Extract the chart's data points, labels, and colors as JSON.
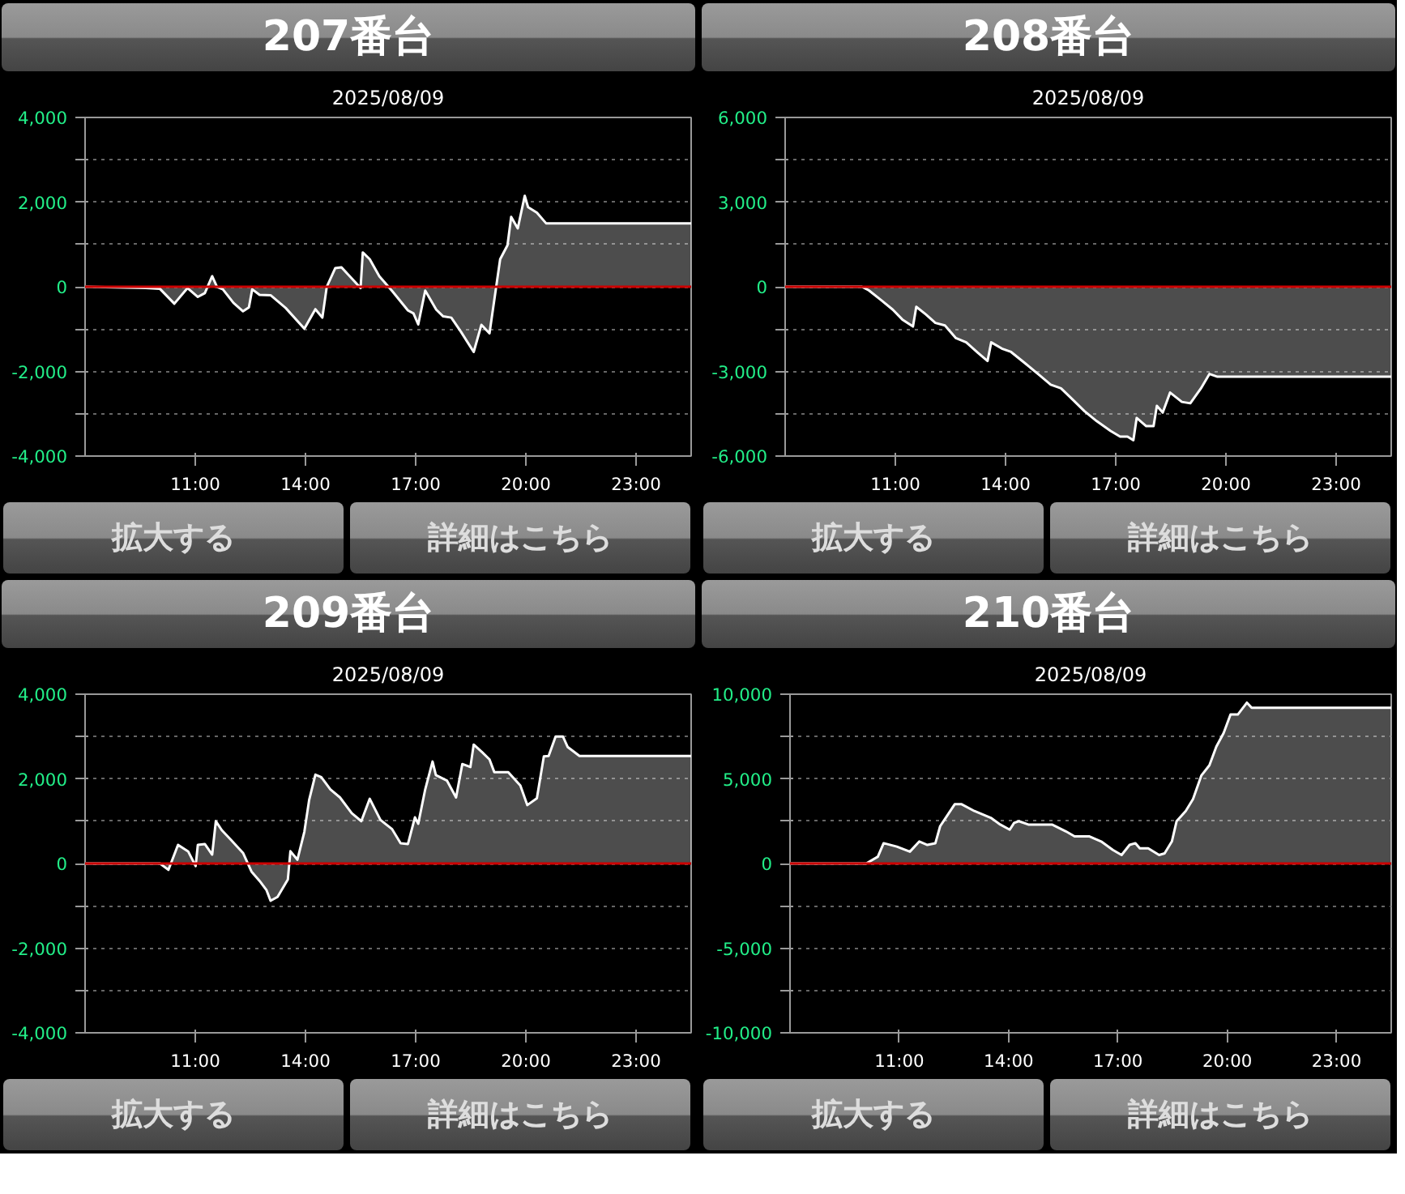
{
  "chart_data": [
    {
      "type": "area",
      "title": "207番台",
      "subtitle": "2025/08/09",
      "annotations": [
        "拡大する",
        "詳細はこちら"
      ],
      "grid": "y",
      "xlim": [
        8,
        24.5
      ],
      "xticks": [
        {
          "value": 11,
          "label": "11:00"
        },
        {
          "value": 14,
          "label": "14:00"
        },
        {
          "value": 17,
          "label": "17:00"
        },
        {
          "value": 20,
          "label": "20:00"
        },
        {
          "value": 23,
          "label": "23:00"
        }
      ],
      "ylim": [
        -4000,
        4000
      ],
      "yticks": [
        {
          "value": -4000,
          "label": "-4,000"
        },
        {
          "value": -3000,
          "label": null
        },
        {
          "value": -2000,
          "label": "-2,000"
        },
        {
          "value": -1000,
          "label": null
        },
        0,
        {
          "value": 1000,
          "label": null
        },
        {
          "value": 2000,
          "label": "2,000"
        },
        {
          "value": 3000,
          "label": null
        },
        {
          "value": 4000,
          "label": "4,000"
        }
      ],
      "ref_lines": [
        {
          "axis": "y",
          "value": 0,
          "color": "#cc0000"
        }
      ],
      "series": [
        {
          "color": "#ffffff",
          "x": [
            8.0,
            9.65,
            10.04,
            10.43,
            10.79,
            11.07,
            11.26,
            11.46,
            11.59,
            11.75,
            12.04,
            12.3,
            12.46,
            12.55,
            12.75,
            13.05,
            13.46,
            13.97,
            14.27,
            14.46,
            14.58,
            14.81,
            14.98,
            15.5,
            15.56,
            15.75,
            16.01,
            16.36,
            16.79,
            16.94,
            17.07,
            17.26,
            17.56,
            17.75,
            17.97,
            18.23,
            18.58,
            18.79,
            19.01,
            19.3,
            19.5,
            19.6,
            19.78,
            19.97,
            20.06,
            20.3,
            20.55,
            24.5
          ],
          "values": [
            0,
            -30,
            -50,
            -400,
            -30,
            -240,
            -150,
            250,
            0,
            -60,
            -380,
            -580,
            -490,
            -60,
            -190,
            -200,
            -500,
            -990,
            -530,
            -730,
            0,
            440,
            460,
            -30,
            810,
            650,
            250,
            -100,
            -560,
            -630,
            -890,
            -90,
            -540,
            -700,
            -730,
            -1060,
            -1540,
            -900,
            -1100,
            650,
            980,
            1650,
            1380,
            2150,
            1880,
            1750,
            1500,
            1500
          ]
        }
      ]
    },
    {
      "type": "area",
      "title": "208番台",
      "subtitle": "2025/08/09",
      "annotations": [
        "拡大する",
        "詳細はこちら"
      ],
      "grid": "y",
      "xlim": [
        8,
        24.5
      ],
      "xticks": [
        {
          "value": 11,
          "label": "11:00"
        },
        {
          "value": 14,
          "label": "14:00"
        },
        {
          "value": 17,
          "label": "17:00"
        },
        {
          "value": 20,
          "label": "20:00"
        },
        {
          "value": 23,
          "label": "23:00"
        }
      ],
      "ylim": [
        -6000,
        6000
      ],
      "yticks": [
        {
          "value": -6000,
          "label": "-6,000"
        },
        {
          "value": -4500,
          "label": null
        },
        {
          "value": -3000,
          "label": "-3,000"
        },
        {
          "value": -1500,
          "label": null
        },
        0,
        {
          "value": 1500,
          "label": null
        },
        {
          "value": 3000,
          "label": "3,000"
        },
        {
          "value": 4500,
          "label": null
        },
        {
          "value": 6000,
          "label": "6,000"
        }
      ],
      "ref_lines": [
        {
          "axis": "y",
          "value": 0,
          "color": "#cc0000"
        }
      ],
      "series": [
        {
          "color": "#ffffff",
          "x": [
            8.0,
            10.09,
            10.28,
            10.61,
            10.93,
            11.19,
            11.48,
            11.57,
            11.83,
            12.09,
            12.35,
            12.65,
            12.93,
            13.25,
            13.51,
            13.61,
            13.9,
            14.15,
            14.54,
            14.93,
            15.23,
            15.51,
            15.83,
            16.15,
            16.48,
            16.86,
            17.12,
            17.32,
            17.48,
            17.57,
            17.83,
            18.03,
            18.12,
            18.28,
            18.48,
            18.8,
            19.03,
            19.32,
            19.55,
            19.77,
            24.5
          ],
          "values": [
            0,
            0,
            -130,
            -470,
            -810,
            -1160,
            -1410,
            -710,
            -980,
            -1280,
            -1370,
            -1820,
            -1970,
            -2340,
            -2630,
            -1970,
            -2190,
            -2310,
            -2720,
            -3140,
            -3470,
            -3600,
            -4000,
            -4410,
            -4760,
            -5110,
            -5310,
            -5310,
            -5440,
            -4650,
            -4940,
            -4940,
            -4220,
            -4460,
            -3750,
            -4080,
            -4130,
            -3600,
            -3090,
            -3190,
            -3190
          ]
        }
      ]
    },
    {
      "type": "area",
      "title": "209番台",
      "subtitle": "2025/08/09",
      "annotations": [
        "拡大する",
        "詳細はこちら"
      ],
      "grid": "y",
      "xlim": [
        8,
        24.5
      ],
      "xticks": [
        {
          "value": 11,
          "label": "11:00"
        },
        {
          "value": 14,
          "label": "14:00"
        },
        {
          "value": 17,
          "label": "17:00"
        },
        {
          "value": 20,
          "label": "20:00"
        },
        {
          "value": 23,
          "label": "23:00"
        }
      ],
      "ylim": [
        -4000,
        4000
      ],
      "yticks": [
        {
          "value": -4000,
          "label": "-4,000"
        },
        {
          "value": -3000,
          "label": null
        },
        {
          "value": -2000,
          "label": "-2,000"
        },
        {
          "value": -1000,
          "label": null
        },
        0,
        {
          "value": 1000,
          "label": null
        },
        {
          "value": 2000,
          "label": "2,000"
        },
        {
          "value": 3000,
          "label": null
        },
        {
          "value": 4000,
          "label": "4,000"
        }
      ],
      "ref_lines": [
        {
          "axis": "y",
          "value": 0,
          "color": "#cc0000"
        }
      ],
      "series": [
        {
          "color": "#ffffff",
          "x": [
            8.0,
            10.04,
            10.27,
            10.53,
            10.81,
            11.01,
            11.07,
            11.26,
            11.46,
            11.56,
            11.72,
            11.97,
            12.3,
            12.53,
            12.75,
            12.94,
            13.05,
            13.24,
            13.52,
            13.59,
            13.78,
            13.97,
            14.1,
            14.27,
            14.43,
            14.68,
            14.94,
            15.26,
            15.52,
            15.75,
            16.04,
            16.36,
            16.59,
            16.79,
            16.98,
            17.07,
            17.26,
            17.46,
            17.55,
            17.85,
            18.1,
            18.27,
            18.49,
            18.58,
            18.81,
            19.01,
            19.14,
            19.52,
            19.85,
            20.04,
            20.3,
            20.49,
            20.62,
            20.81,
            21.01,
            21.14,
            21.46,
            24.5
          ],
          "values": [
            0,
            0,
            -150,
            440,
            280,
            -60,
            440,
            460,
            210,
            1000,
            790,
            560,
            250,
            -190,
            -410,
            -630,
            -880,
            -790,
            -380,
            290,
            90,
            750,
            1500,
            2100,
            2040,
            1750,
            1560,
            1190,
            1000,
            1530,
            1030,
            810,
            480,
            460,
            1090,
            940,
            1750,
            2410,
            2090,
            1960,
            1560,
            2350,
            2280,
            2810,
            2630,
            2460,
            2160,
            2160,
            1840,
            1380,
            1540,
            2530,
            2540,
            3000,
            3000,
            2750,
            2540,
            2540
          ]
        }
      ]
    },
    {
      "type": "area",
      "title": "210番台",
      "subtitle": "2025/08/09",
      "annotations": [
        "拡大する",
        "詳細はこちら"
      ],
      "grid": "y",
      "xlim": [
        8,
        24.5
      ],
      "xticks": [
        {
          "value": 11,
          "label": "11:00"
        },
        {
          "value": 14,
          "label": "14:00"
        },
        {
          "value": 17,
          "label": "17:00"
        },
        {
          "value": 20,
          "label": "20:00"
        },
        {
          "value": 23,
          "label": "23:00"
        }
      ],
      "ylim": [
        -10000,
        10000
      ],
      "yticks": [
        {
          "value": -10000,
          "label": "-10,000"
        },
        {
          "value": -7500,
          "label": null
        },
        {
          "value": -5000,
          "label": "-5,000"
        },
        {
          "value": -2500,
          "label": null
        },
        0,
        {
          "value": 2500,
          "label": null
        },
        {
          "value": 5000,
          "label": "5,000"
        },
        {
          "value": 7500,
          "label": null
        },
        {
          "value": 10000,
          "label": "10,000"
        }
      ],
      "ref_lines": [
        {
          "axis": "y",
          "value": 0,
          "color": "#cc0000"
        }
      ],
      "series": [
        {
          "color": "#ffffff",
          "x": [
            8.0,
            10.09,
            10.41,
            10.57,
            10.93,
            11.29,
            11.55,
            11.77,
            11.99,
            12.12,
            12.52,
            12.71,
            13.06,
            13.51,
            13.77,
            14.03,
            14.15,
            14.28,
            14.54,
            15.19,
            15.57,
            15.81,
            16.22,
            16.54,
            16.86,
            17.1,
            17.32,
            17.48,
            17.6,
            17.83,
            18.13,
            18.28,
            18.48,
            18.61,
            18.86,
            19.06,
            19.29,
            19.51,
            19.7,
            19.9,
            20.09,
            20.29,
            20.54,
            20.67,
            24.5
          ],
          "values": [
            0,
            0,
            400,
            1200,
            1000,
            700,
            1300,
            1100,
            1200,
            2200,
            3500,
            3500,
            3100,
            2700,
            2300,
            2000,
            2400,
            2500,
            2300,
            2300,
            1900,
            1600,
            1600,
            1300,
            800,
            500,
            1100,
            1200,
            900,
            900,
            500,
            600,
            1300,
            2500,
            3100,
            3800,
            5200,
            5800,
            6900,
            7700,
            8800,
            8800,
            9500,
            9200,
            9200
          ]
        }
      ]
    }
  ]
}
